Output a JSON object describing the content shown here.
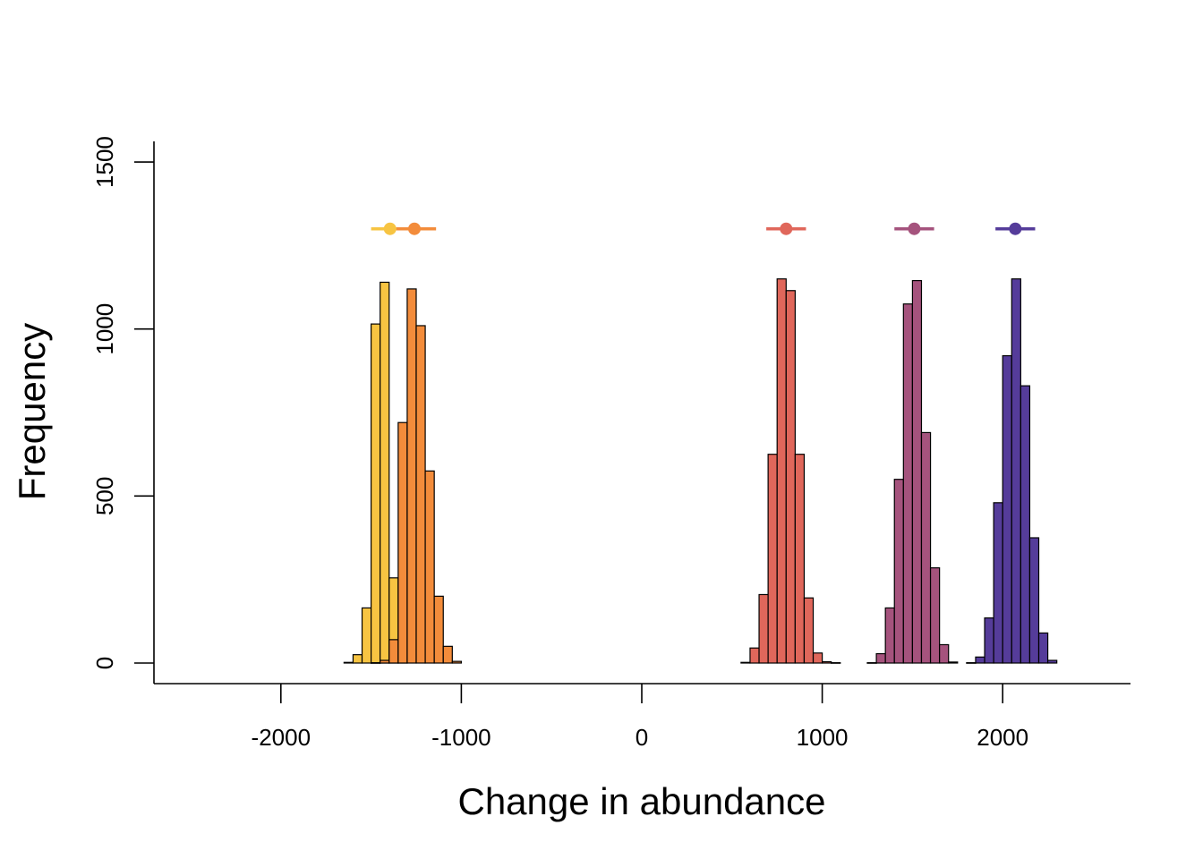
{
  "chart_data": {
    "type": "histogram",
    "title": "",
    "xlabel": "Change in abundance",
    "ylabel": "Frequency",
    "xlim": [
      -2700,
      2700
    ],
    "ylim": [
      -60,
      1560
    ],
    "x_ticks": [
      -2000,
      -1000,
      0,
      1000,
      2000
    ],
    "x_tick_labels": [
      "-2000",
      "-1000",
      "0",
      "1000",
      "2000"
    ],
    "y_ticks": [
      0,
      500,
      1000,
      1500
    ],
    "y_tick_labels": [
      "0",
      "500",
      "1000",
      "1500"
    ],
    "bin_width": 50,
    "grid": false,
    "legend": "none",
    "interval_y": 1300,
    "series": [
      {
        "color": "#F7C442",
        "bin_start": -1650,
        "counts": [
          2,
          25,
          165,
          1015,
          1140,
          255,
          5
        ],
        "point": -1395,
        "interval": [
          -1500,
          -1300
        ]
      },
      {
        "color": "#F38C3B",
        "bin_start": -1500,
        "counts": [
          1,
          8,
          70,
          720,
          1120,
          1010,
          575,
          200,
          50,
          5
        ],
        "point": -1260,
        "interval": [
          -1360,
          -1140
        ]
      },
      {
        "color": "#E0675B",
        "bin_start": 550,
        "counts": [
          2,
          45,
          205,
          625,
          1150,
          1115,
          625,
          195,
          30,
          4,
          1
        ],
        "point": 800,
        "interval": [
          690,
          910
        ]
      },
      {
        "color": "#A5537D",
        "bin_start": 1250,
        "counts": [
          1,
          28,
          165,
          550,
          1075,
          1145,
          690,
          285,
          55,
          3
        ],
        "point": 1510,
        "interval": [
          1400,
          1620
        ]
      },
      {
        "color": "#553C9A",
        "bin_start": 1800,
        "counts": [
          1,
          18,
          135,
          480,
          920,
          1150,
          830,
          375,
          90,
          8
        ],
        "point": 2070,
        "interval": [
          1960,
          2180
        ]
      }
    ]
  }
}
